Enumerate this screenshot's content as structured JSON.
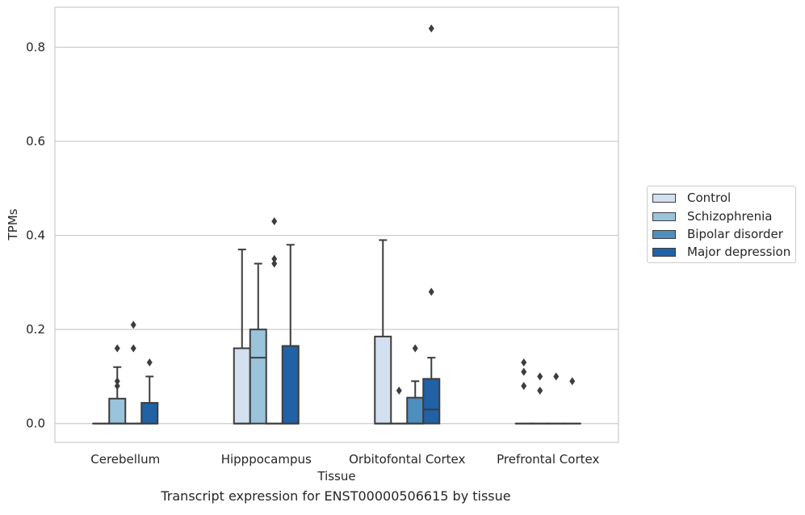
{
  "chart_data": {
    "type": "box",
    "xlabel": "Tissue",
    "ylabel": "TPMs",
    "ylim": [
      -0.04,
      0.885
    ],
    "yticks": [
      "0.0",
      "0.2",
      "0.4",
      "0.6",
      "0.8"
    ],
    "ytick_values": [
      0.0,
      0.2,
      0.4,
      0.6,
      0.8
    ],
    "grid": true,
    "legend_position": "right",
    "categories": [
      "Cerebellum",
      "Hipppocampus",
      "Orbitofontal Cortex",
      "Prefrontal Cortex"
    ],
    "series": [
      {
        "name": "Control",
        "color": "#d2e0f0",
        "boxes": [
          {
            "whislo": 0,
            "q1": 0,
            "med": 0,
            "q3": 0,
            "whishi": 0,
            "fliers": []
          },
          {
            "whislo": 0,
            "q1": 0,
            "med": 0,
            "q3": 0.16,
            "whishi": 0.37,
            "fliers": []
          },
          {
            "whislo": 0,
            "q1": 0,
            "med": 0,
            "q3": 0.185,
            "whishi": 0.39,
            "fliers": []
          },
          {
            "whislo": 0,
            "q1": 0,
            "med": 0,
            "q3": 0,
            "whishi": 0,
            "fliers": [
              0.13,
              0.11,
              0.08
            ]
          }
        ]
      },
      {
        "name": "Schizophrenia",
        "color": "#9ac3dc",
        "boxes": [
          {
            "whislo": 0,
            "q1": 0,
            "med": 0,
            "q3": 0.053,
            "whishi": 0.12,
            "fliers": [
              0.16,
              0.09,
              0.08
            ]
          },
          {
            "whislo": 0,
            "q1": 0,
            "med": 0.14,
            "q3": 0.2,
            "whishi": 0.34,
            "fliers": []
          },
          {
            "whislo": 0,
            "q1": 0,
            "med": 0,
            "q3": 0,
            "whishi": 0,
            "fliers": [
              0.07
            ]
          },
          {
            "whislo": 0,
            "q1": 0,
            "med": 0,
            "q3": 0,
            "whishi": 0,
            "fliers": [
              0.1,
              0.07
            ]
          }
        ]
      },
      {
        "name": "Bipolar disorder",
        "color": "#4f8fbd",
        "boxes": [
          {
            "whislo": 0,
            "q1": 0,
            "med": 0,
            "q3": 0,
            "whishi": 0,
            "fliers": [
              0.21,
              0.16
            ]
          },
          {
            "whislo": 0,
            "q1": 0,
            "med": 0,
            "q3": 0,
            "whishi": 0,
            "fliers": [
              0.43,
              0.35,
              0.34
            ]
          },
          {
            "whislo": 0,
            "q1": 0,
            "med": 0,
            "q3": 0.055,
            "whishi": 0.09,
            "fliers": [
              0.16
            ]
          },
          {
            "whislo": 0,
            "q1": 0,
            "med": 0,
            "q3": 0,
            "whishi": 0,
            "fliers": [
              0.1
            ]
          }
        ]
      },
      {
        "name": "Major depression",
        "color": "#2161a6",
        "boxes": [
          {
            "whislo": 0,
            "q1": 0,
            "med": 0,
            "q3": 0.044,
            "whishi": 0.1,
            "fliers": [
              0.13
            ]
          },
          {
            "whislo": 0,
            "q1": 0,
            "med": 0,
            "q3": 0.165,
            "whishi": 0.38,
            "fliers": []
          },
          {
            "whislo": 0,
            "q1": 0,
            "med": 0.03,
            "q3": 0.095,
            "whishi": 0.14,
            "fliers": [
              0.28,
              0.84
            ]
          },
          {
            "whislo": 0,
            "q1": 0,
            "med": 0,
            "q3": 0,
            "whishi": 0,
            "fliers": [
              0.09
            ]
          }
        ]
      }
    ]
  },
  "caption": "Transcript expression for ENST00000506615 by tissue"
}
